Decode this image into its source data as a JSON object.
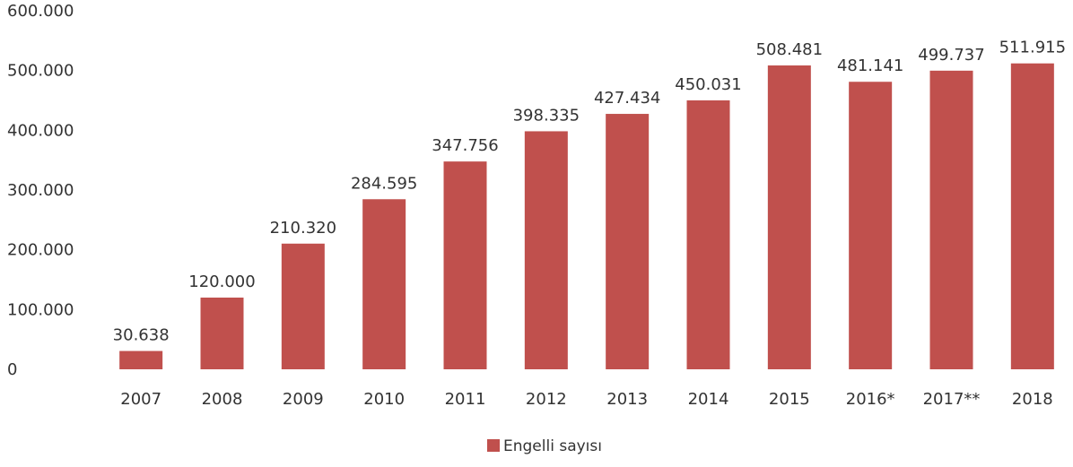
{
  "chart_data": {
    "type": "bar",
    "categories": [
      "2007",
      "2008",
      "2009",
      "2010",
      "2011",
      "2012",
      "2013",
      "2014",
      "2015",
      "2016*",
      "2017**",
      "2018"
    ],
    "series": [
      {
        "name": "Engelli sayısı",
        "values": [
          30638,
          120000,
          210320,
          284595,
          347756,
          398335,
          427434,
          450031,
          508481,
          481141,
          499737,
          511915
        ],
        "data_labels": [
          "30.638",
          "120.000",
          "210.320",
          "284.595",
          "347.756",
          "398.335",
          "427.434",
          "450.031",
          "508.481",
          "481.141",
          "499.737",
          "511.915"
        ],
        "color": "#C0504D"
      }
    ],
    "y_ticks": [
      0,
      100000,
      200000,
      300000,
      400000,
      500000,
      600000
    ],
    "y_tick_labels": [
      "0",
      "100.000",
      "200.000",
      "300.000",
      "400.000",
      "500.000",
      "600.000"
    ],
    "ylim": [
      0,
      600000
    ],
    "grid": false,
    "legend_position": "bottom",
    "title": "",
    "xlabel": "",
    "ylabel": ""
  }
}
